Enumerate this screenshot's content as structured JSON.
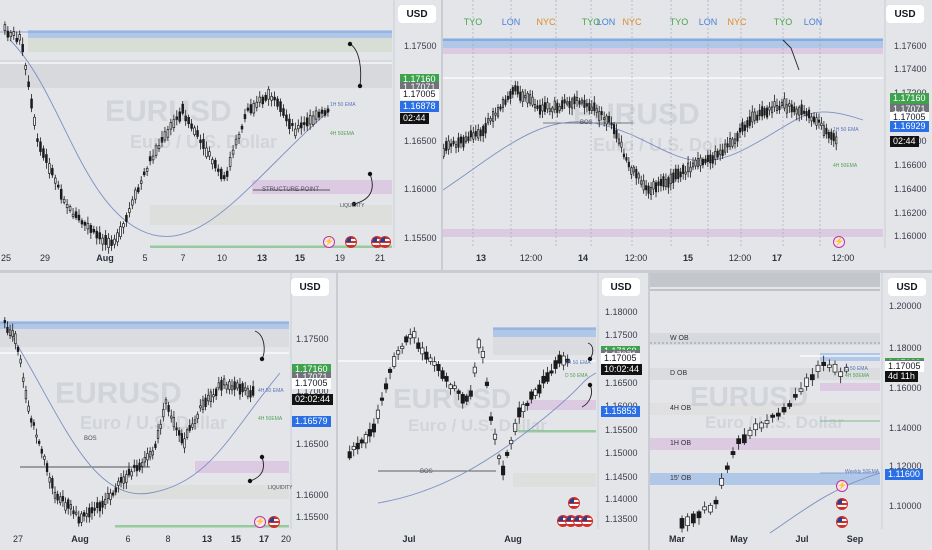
{
  "currency": "USD",
  "watermark": {
    "symbol": "EURUSD",
    "sub": "Euro / U.S. Dollar"
  },
  "panels": [
    {
      "id": "p1",
      "price_tags": [
        {
          "kind": "green",
          "text": "1.17160",
          "price": 1.1716
        },
        {
          "kind": "gray",
          "text": "1.17071",
          "price": 1.17071
        },
        {
          "kind": "white",
          "text": "1.17005",
          "price": 1.17005
        },
        {
          "kind": "blue",
          "text": "1.16878",
          "price": 1.16878
        },
        {
          "kind": "timer",
          "text": "02:44",
          "price": 1.1675
        }
      ],
      "y_ticks": [
        "1.17500",
        "1.17000",
        "1.16500",
        "1.16000",
        "1.15500"
      ],
      "y_tick_values": [
        1.175,
        1.17,
        1.165,
        1.16,
        1.155
      ],
      "x_ticks": [
        "25",
        "29",
        "Aug",
        "5",
        "7",
        "10",
        "13",
        "15",
        "19",
        "21"
      ],
      "annotations": [
        "STRUCTURE POINT",
        "1H 50 EMA",
        "4H 50EMA",
        "LIQUIDITY"
      ]
    },
    {
      "id": "p2",
      "sessions": [
        "TYO",
        "LON",
        "NYC",
        "TYO",
        "LON",
        "NYC",
        "TYO",
        "LON",
        "NYC",
        "TYO",
        "LON"
      ],
      "price_tags": [
        {
          "kind": "green",
          "text": "1.17160",
          "price": 1.1716
        },
        {
          "kind": "gray",
          "text": "1.17071",
          "price": 1.17071
        },
        {
          "kind": "white",
          "text": "1.17005",
          "price": 1.17005
        },
        {
          "kind": "blue",
          "text": "1.16929",
          "price": 1.16929
        },
        {
          "kind": "timer",
          "text": "02:44",
          "price": 1.168
        }
      ],
      "y_ticks": [
        "1.17600",
        "1.17400",
        "1.17200",
        "1.17000",
        "1.16800",
        "1.16600",
        "1.16400",
        "1.16200",
        "1.16000"
      ],
      "y_tick_values": [
        1.176,
        1.174,
        1.172,
        1.17,
        1.168,
        1.166,
        1.164,
        1.162,
        1.16
      ],
      "x_ticks": [
        "13",
        "12:00",
        "14",
        "12:00",
        "15",
        "12:00",
        "17",
        "12:00"
      ],
      "annotations": [
        "BOS",
        "1H 50 EMA",
        "4H 50EMA"
      ]
    },
    {
      "id": "p3",
      "price_tags": [
        {
          "kind": "green",
          "text": "1.17160",
          "price": 1.1716
        },
        {
          "kind": "gray",
          "text": "1.17071",
          "price": 1.17071
        },
        {
          "kind": "white",
          "text": "1.17005",
          "price": 1.17005
        },
        {
          "kind": "timer",
          "text": "02:02:44",
          "price": 1.1683
        },
        {
          "kind": "blue",
          "text": "1.16579",
          "price": 1.16579
        }
      ],
      "y_ticks": [
        "1.17500",
        "1.17000",
        "1.16500",
        "1.16000",
        "1.15500"
      ],
      "y_tick_values": [
        1.175,
        1.17,
        1.165,
        1.16,
        1.155
      ],
      "x_ticks": [
        "27",
        "Aug",
        "6",
        "8",
        "13",
        "15",
        "17",
        "20"
      ],
      "annotations": [
        "BOS",
        "4H 50 EMA",
        "4H 50EMA",
        "LIQUIDITY"
      ]
    },
    {
      "id": "p4",
      "price_tags": [
        {
          "kind": "green",
          "text": "1.17160",
          "price": 1.1716
        },
        {
          "kind": "gray",
          "text": "1.17071",
          "price": 1.17071
        },
        {
          "kind": "white",
          "text": "1.17005",
          "price": 1.17005
        },
        {
          "kind": "timer",
          "text": "10:02:44",
          "price": 1.1676
        },
        {
          "kind": "blue",
          "text": "1.15853",
          "price": 1.15853
        }
      ],
      "y_ticks": [
        "1.18000",
        "1.17500",
        "1.17000",
        "1.16500",
        "1.16000",
        "1.15500",
        "1.15000",
        "1.14500",
        "1.14000",
        "1.13500"
      ],
      "y_tick_values": [
        1.18,
        1.175,
        1.17,
        1.165,
        1.16,
        1.155,
        1.15,
        1.145,
        1.14,
        1.135
      ],
      "x_ticks": [
        "Jul",
        "Aug"
      ],
      "annotations": [
        "BOS",
        "4H 50 EMA",
        "D 50 EMA"
      ]
    },
    {
      "id": "p5",
      "price_tags": [
        {
          "kind": "green",
          "text": "1.17160",
          "price": 1.1716
        },
        {
          "kind": "gray",
          "text": "1.17071",
          "price": 1.17071
        },
        {
          "kind": "white",
          "text": "1.17005",
          "price": 1.17005
        },
        {
          "kind": "timer",
          "text": "4d 11h",
          "price": 1.165
        },
        {
          "kind": "blue",
          "text": "1.11600",
          "price": 1.116
        }
      ],
      "y_ticks": [
        "1.20000",
        "1.18000",
        "1.16000",
        "1.14000",
        "1.12000",
        "1.10000"
      ],
      "y_tick_values": [
        1.2,
        1.18,
        1.16,
        1.14,
        1.12,
        1.1
      ],
      "x_ticks": [
        "Mar",
        "May",
        "Jul",
        "Sep"
      ],
      "legend": [
        "W OB",
        "D OB",
        "4H OB",
        "1H OB",
        "15' OB"
      ],
      "annotations": [
        "Weekly 50EMA",
        "D 50 EMA",
        "4H 50EMA"
      ]
    }
  ],
  "colors": {
    "green_tag": "#3fa34d",
    "gray_tag": "#707379",
    "blue_tag": "#2b6fe6",
    "timer_tag": "#121212",
    "candle": "#1a1a1a",
    "ema": "#7d8fc2",
    "bos": "#555555",
    "zone_blue": "#8fb3e8",
    "zone_green": "#9fd4a6",
    "zone_pink": "#d7b6dd"
  }
}
